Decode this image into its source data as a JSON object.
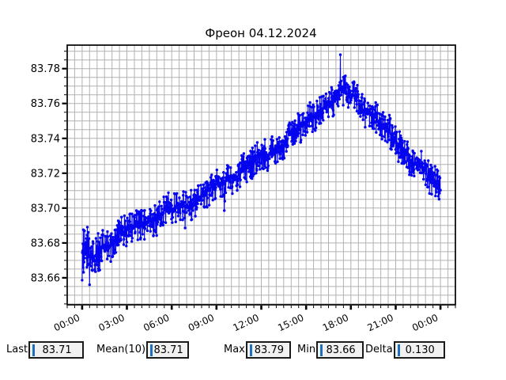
{
  "chart_data": {
    "type": "line",
    "title": "Фреон 04.12.2024",
    "x_axis": {
      "tick_labels": [
        "00:00",
        "03:00",
        "06:00",
        "09:00",
        "12:00",
        "15:00",
        "18:00",
        "21:00",
        "00:00"
      ],
      "tick_hours": [
        0,
        3,
        6,
        9,
        12,
        15,
        18,
        21,
        24
      ],
      "range_hours": [
        -1,
        25
      ],
      "minor_step_hours": 0.5,
      "label_rotation_deg": 25
    },
    "y_axis": {
      "tick_labels": [
        "83.78",
        "83.76",
        "83.74",
        "83.72",
        "83.70",
        "83.68",
        "83.66"
      ],
      "tick_values": [
        83.78,
        83.76,
        83.74,
        83.72,
        83.7,
        83.68,
        83.66
      ],
      "range": [
        83.6445,
        83.7935
      ],
      "minor_step": 0.005
    },
    "grid": {
      "show": true,
      "color": "#b2b2b2"
    },
    "series": {
      "name": "freon-trend",
      "color": "#0404ee",
      "marker": "circle",
      "time_span_hours": [
        0,
        24
      ],
      "baseline_points": [
        [
          0,
          83.672
        ],
        [
          0.5,
          83.671
        ],
        [
          1,
          83.674
        ],
        [
          1.5,
          83.678
        ],
        [
          2,
          83.681
        ],
        [
          3,
          83.687
        ],
        [
          4,
          83.691
        ],
        [
          5,
          83.695
        ],
        [
          6,
          83.699
        ],
        [
          7,
          83.702
        ],
        [
          8,
          83.707
        ],
        [
          9,
          83.712
        ],
        [
          10,
          83.718
        ],
        [
          11,
          83.723
        ],
        [
          12,
          83.729
        ],
        [
          13,
          83.735
        ],
        [
          14,
          83.742
        ],
        [
          15,
          83.749
        ],
        [
          16,
          83.757
        ],
        [
          17,
          83.7635
        ],
        [
          17.5,
          83.766
        ],
        [
          18,
          83.7655
        ],
        [
          18.5,
          83.7625
        ],
        [
          19,
          83.757
        ],
        [
          20,
          83.748
        ],
        [
          21,
          83.7385
        ],
        [
          22,
          83.7285
        ],
        [
          23,
          83.7195
        ],
        [
          24,
          83.7105
        ]
      ],
      "noise_halfwidth_start": 0.016,
      "noise_halfwidth": 0.006
    },
    "stats": {
      "last": 83.71,
      "mean_10": 83.71,
      "max": 83.79,
      "min": 83.66,
      "delta": 0.13
    }
  },
  "status_bar": {
    "cursor_color": "#1c6fbb",
    "fields": [
      {
        "label": "Last",
        "value": "83.71"
      },
      {
        "label": "Mean(10)",
        "value": "83.71"
      },
      {
        "label": "Max",
        "value": "83.79"
      },
      {
        "label": "Min",
        "value": "83.66"
      },
      {
        "label": "Delta",
        "value": "0.130"
      }
    ]
  }
}
